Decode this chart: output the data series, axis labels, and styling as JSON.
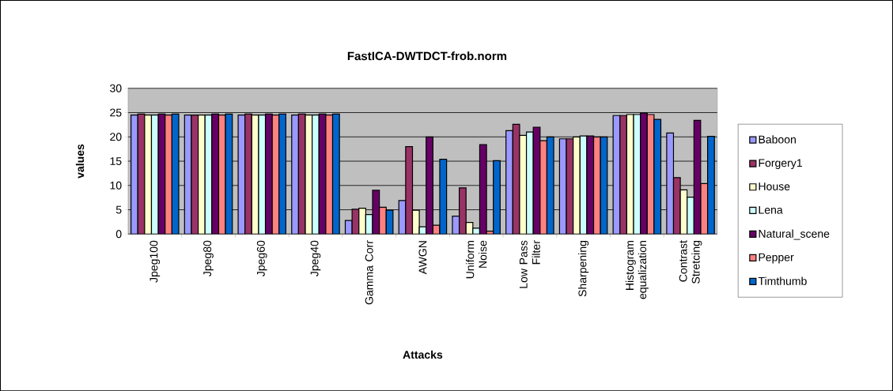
{
  "chart_data": {
    "type": "bar",
    "title": "FastICA-DWTDCT-frob.norm",
    "xlabel": "Attacks",
    "ylabel": "values",
    "categories": [
      "Jpeg100",
      "Jpeg80",
      "Jpeg60",
      "Jpeg40",
      "Gamma Corr",
      "AWGN",
      "Uniform Noise",
      "Low Pass Filter",
      "Sharpening",
      "Histogram equalization",
      "Contrast Stretcing"
    ],
    "series": [
      {
        "name": "Baboon",
        "color": "#9999ff",
        "values": [
          24.5,
          24.5,
          24.5,
          24.5,
          2.8,
          6.9,
          3.7,
          21.3,
          19.6,
          24.4,
          20.8
        ]
      },
      {
        "name": "Forgery1",
        "color": "#993366",
        "values": [
          24.7,
          24.5,
          24.7,
          24.7,
          5.1,
          18.0,
          9.5,
          22.6,
          19.6,
          24.4,
          11.6
        ]
      },
      {
        "name": "House",
        "color": "#ffffcc",
        "values": [
          24.5,
          24.5,
          24.5,
          24.5,
          5.3,
          4.9,
          2.4,
          20.3,
          20.0,
          24.6,
          9.1
        ]
      },
      {
        "name": "Lena",
        "color": "#ccffff",
        "values": [
          24.5,
          24.5,
          24.5,
          24.5,
          4.0,
          1.5,
          1.2,
          21.0,
          20.2,
          24.6,
          7.6
        ]
      },
      {
        "name": "Natural_scene",
        "color": "#660066",
        "values": [
          24.7,
          24.7,
          24.7,
          24.7,
          9.0,
          20.0,
          18.4,
          22.0,
          20.2,
          24.9,
          23.4
        ]
      },
      {
        "name": "Pepper",
        "color": "#ff8080",
        "values": [
          24.5,
          24.5,
          24.5,
          24.5,
          5.5,
          1.8,
          0.6,
          19.2,
          20.0,
          24.6,
          10.4
        ]
      },
      {
        "name": "Timthumb",
        "color": "#0066cc",
        "values": [
          24.7,
          24.7,
          24.7,
          24.7,
          4.9,
          15.4,
          15.1,
          20.0,
          20.0,
          23.6,
          20.1
        ]
      }
    ],
    "ylim": [
      0,
      30
    ],
    "yticks": [
      0,
      5,
      10,
      15,
      20,
      25,
      30
    ],
    "grid": "y",
    "legend": "right"
  }
}
